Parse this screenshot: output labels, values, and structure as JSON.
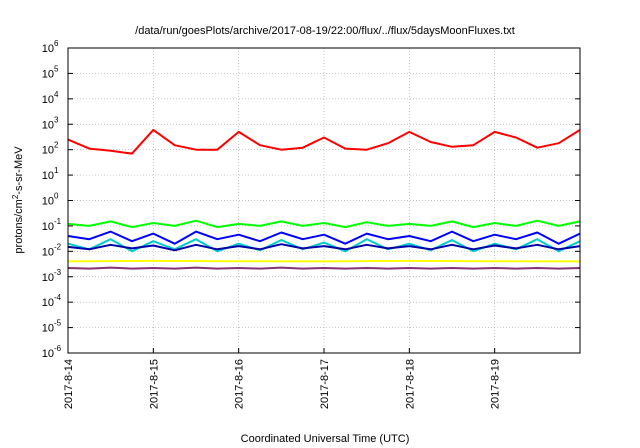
{
  "chart_data": {
    "type": "line",
    "title": "/data/run/goesPlots/archive/2017-08-19/22:00/flux/../flux/5daysMoonFluxes.txt",
    "xlabel": "Coordinated Universal Time (UTC)",
    "ylabel": "protons/cm2-s-sr-MeV",
    "y_scale": "log",
    "ylim": [
      1e-06,
      1000000.0
    ],
    "y_ticks": [
      {
        "exp": "-6",
        "value": 1e-06
      },
      {
        "exp": "-5",
        "value": 1e-05
      },
      {
        "exp": "-4",
        "value": 0.0001
      },
      {
        "exp": "-3",
        "value": 0.001
      },
      {
        "exp": "-2",
        "value": 0.01
      },
      {
        "exp": "-1",
        "value": 0.1
      },
      {
        "exp": "0",
        "value": 1
      },
      {
        "exp": "1",
        "value": 10
      },
      {
        "exp": "2",
        "value": 100
      },
      {
        "exp": "3",
        "value": 1000
      },
      {
        "exp": "4",
        "value": 10000
      },
      {
        "exp": "5",
        "value": 100000
      },
      {
        "exp": "6",
        "value": 1000000
      }
    ],
    "x_ticks": [
      "2017-8-14",
      "2017-8-15",
      "2017-8-16",
      "2017-8-17",
      "2017-8-18",
      "2017-8-19"
    ],
    "xlim": [
      "2017-08-14 00:00",
      "2017-08-20 00:00"
    ],
    "grid": true,
    "series": [
      {
        "color": "#ff0000",
        "x": [
          "2017-08-14 00:00",
          "2017-08-14 06:00",
          "2017-08-14 12:00",
          "2017-08-14 18:00",
          "2017-08-15 00:00",
          "2017-08-15 06:00",
          "2017-08-15 12:00",
          "2017-08-15 18:00",
          "2017-08-16 00:00",
          "2017-08-16 06:00",
          "2017-08-16 12:00",
          "2017-08-16 18:00",
          "2017-08-17 00:00",
          "2017-08-17 06:00",
          "2017-08-17 12:00",
          "2017-08-17 18:00",
          "2017-08-18 00:00",
          "2017-08-18 06:00",
          "2017-08-18 12:00",
          "2017-08-18 18:00",
          "2017-08-19 00:00",
          "2017-08-19 06:00",
          "2017-08-19 12:00",
          "2017-08-19 18:00",
          "2017-08-20 00:00"
        ],
        "y": [
          250,
          110,
          90,
          70,
          600,
          150,
          100,
          100,
          500,
          150,
          100,
          120,
          300,
          110,
          100,
          180,
          500,
          200,
          130,
          150,
          500,
          300,
          120,
          180,
          600
        ]
      },
      {
        "color": "#00ff00",
        "x": [
          "2017-08-14 00:00",
          "2017-08-14 06:00",
          "2017-08-14 12:00",
          "2017-08-14 18:00",
          "2017-08-15 00:00",
          "2017-08-15 06:00",
          "2017-08-15 12:00",
          "2017-08-15 18:00",
          "2017-08-16 00:00",
          "2017-08-16 06:00",
          "2017-08-16 12:00",
          "2017-08-16 18:00",
          "2017-08-17 00:00",
          "2017-08-17 06:00",
          "2017-08-17 12:00",
          "2017-08-17 18:00",
          "2017-08-18 00:00",
          "2017-08-18 06:00",
          "2017-08-18 12:00",
          "2017-08-18 18:00",
          "2017-08-19 00:00",
          "2017-08-19 06:00",
          "2017-08-19 12:00",
          "2017-08-19 18:00",
          "2017-08-20 00:00"
        ],
        "y": [
          0.12,
          0.1,
          0.15,
          0.09,
          0.13,
          0.1,
          0.16,
          0.09,
          0.12,
          0.1,
          0.15,
          0.1,
          0.13,
          0.09,
          0.14,
          0.1,
          0.12,
          0.1,
          0.15,
          0.09,
          0.13,
          0.1,
          0.16,
          0.1,
          0.15
        ]
      },
      {
        "color": "#00cccc",
        "x": [
          "2017-08-14 00:00",
          "2017-08-14 06:00",
          "2017-08-14 12:00",
          "2017-08-14 18:00",
          "2017-08-15 00:00",
          "2017-08-15 06:00",
          "2017-08-15 12:00",
          "2017-08-15 18:00",
          "2017-08-16 00:00",
          "2017-08-16 06:00",
          "2017-08-16 12:00",
          "2017-08-16 18:00",
          "2017-08-17 00:00",
          "2017-08-17 06:00",
          "2017-08-17 12:00",
          "2017-08-17 18:00",
          "2017-08-18 00:00",
          "2017-08-18 06:00",
          "2017-08-18 12:00",
          "2017-08-18 18:00",
          "2017-08-19 00:00",
          "2017-08-19 06:00",
          "2017-08-19 12:00",
          "2017-08-19 18:00",
          "2017-08-20 00:00"
        ],
        "y": [
          0.02,
          0.012,
          0.03,
          0.01,
          0.025,
          0.012,
          0.03,
          0.01,
          0.02,
          0.011,
          0.028,
          0.012,
          0.022,
          0.01,
          0.03,
          0.012,
          0.02,
          0.011,
          0.028,
          0.01,
          0.02,
          0.012,
          0.03,
          0.01,
          0.025
        ]
      },
      {
        "color": "#0000ff",
        "x": [
          "2017-08-14 00:00",
          "2017-08-14 06:00",
          "2017-08-14 12:00",
          "2017-08-14 18:00",
          "2017-08-15 00:00",
          "2017-08-15 06:00",
          "2017-08-15 12:00",
          "2017-08-15 18:00",
          "2017-08-16 00:00",
          "2017-08-16 06:00",
          "2017-08-16 12:00",
          "2017-08-16 18:00",
          "2017-08-17 00:00",
          "2017-08-17 06:00",
          "2017-08-17 12:00",
          "2017-08-17 18:00",
          "2017-08-18 00:00",
          "2017-08-18 06:00",
          "2017-08-18 12:00",
          "2017-08-18 18:00",
          "2017-08-19 00:00",
          "2017-08-19 06:00",
          "2017-08-19 12:00",
          "2017-08-19 18:00",
          "2017-08-20 00:00"
        ],
        "y": [
          0.04,
          0.03,
          0.06,
          0.025,
          0.05,
          0.02,
          0.06,
          0.03,
          0.045,
          0.025,
          0.055,
          0.03,
          0.045,
          0.02,
          0.05,
          0.03,
          0.04,
          0.025,
          0.06,
          0.025,
          0.045,
          0.03,
          0.055,
          0.02,
          0.05
        ]
      },
      {
        "color": "#0000aa",
        "x": [
          "2017-08-14 00:00",
          "2017-08-14 06:00",
          "2017-08-14 12:00",
          "2017-08-14 18:00",
          "2017-08-15 00:00",
          "2017-08-15 06:00",
          "2017-08-15 12:00",
          "2017-08-15 18:00",
          "2017-08-16 00:00",
          "2017-08-16 06:00",
          "2017-08-16 12:00",
          "2017-08-16 18:00",
          "2017-08-17 00:00",
          "2017-08-17 06:00",
          "2017-08-17 12:00",
          "2017-08-17 18:00",
          "2017-08-18 00:00",
          "2017-08-18 06:00",
          "2017-08-18 12:00",
          "2017-08-18 18:00",
          "2017-08-19 00:00",
          "2017-08-19 06:00",
          "2017-08-19 12:00",
          "2017-08-19 18:00",
          "2017-08-20 00:00"
        ],
        "y": [
          0.015,
          0.012,
          0.018,
          0.013,
          0.017,
          0.011,
          0.018,
          0.012,
          0.016,
          0.012,
          0.019,
          0.013,
          0.016,
          0.012,
          0.018,
          0.013,
          0.016,
          0.012,
          0.018,
          0.012,
          0.017,
          0.013,
          0.018,
          0.012,
          0.016
        ]
      },
      {
        "color": "#ffff00",
        "x": [
          "2017-08-14 00:00",
          "2017-08-15 00:00",
          "2017-08-16 00:00",
          "2017-08-17 00:00",
          "2017-08-18 00:00",
          "2017-08-19 00:00",
          "2017-08-20 00:00"
        ],
        "y": [
          0.004,
          0.0042,
          0.0041,
          0.004,
          0.0042,
          0.0041,
          0.004
        ]
      },
      {
        "color": "#883377",
        "x": [
          "2017-08-14 00:00",
          "2017-08-14 06:00",
          "2017-08-14 12:00",
          "2017-08-14 18:00",
          "2017-08-15 00:00",
          "2017-08-15 06:00",
          "2017-08-15 12:00",
          "2017-08-15 18:00",
          "2017-08-16 00:00",
          "2017-08-16 06:00",
          "2017-08-16 12:00",
          "2017-08-16 18:00",
          "2017-08-17 00:00",
          "2017-08-17 06:00",
          "2017-08-17 12:00",
          "2017-08-17 18:00",
          "2017-08-18 00:00",
          "2017-08-18 06:00",
          "2017-08-18 12:00",
          "2017-08-18 18:00",
          "2017-08-19 00:00",
          "2017-08-19 06:00",
          "2017-08-19 12:00",
          "2017-08-19 18:00",
          "2017-08-20 00:00"
        ],
        "y": [
          0.0022,
          0.0021,
          0.0023,
          0.0021,
          0.0022,
          0.0021,
          0.0023,
          0.0021,
          0.0022,
          0.0021,
          0.0023,
          0.0021,
          0.0022,
          0.0021,
          0.0022,
          0.0021,
          0.0022,
          0.0021,
          0.0022,
          0.0021,
          0.0022,
          0.0021,
          0.0022,
          0.0021,
          0.0022
        ]
      }
    ]
  }
}
